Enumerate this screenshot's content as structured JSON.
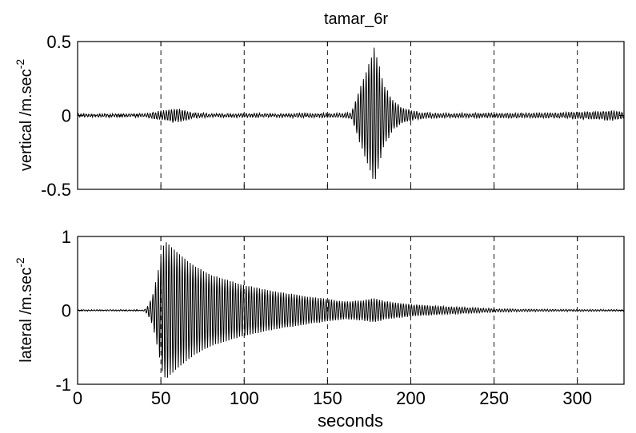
{
  "title": "tamar_6r",
  "xlabel": "seconds",
  "x_tick_labels": [
    "0",
    "50",
    "100",
    "150",
    "200",
    "250",
    "300"
  ],
  "chart_data": [
    {
      "type": "line",
      "title": "tamar_6r",
      "ylabel": "vertical /m.sec",
      "ylabel_exponent": "-2",
      "xlim": [
        0,
        328
      ],
      "ylim": [
        -0.5,
        0.5
      ],
      "yticks": [
        -0.5,
        0,
        0.5
      ],
      "ytick_labels": [
        "-0.5",
        "0",
        "0.5"
      ],
      "xticks": [
        0,
        50,
        100,
        150,
        200,
        250,
        300
      ],
      "grid": "x-dashed",
      "line_color": "#000000",
      "oscillation_period_s": 1.6,
      "noise_amplitude": 0.006,
      "envelope": [
        [
          0,
          0.008
        ],
        [
          40,
          0.008
        ],
        [
          45,
          0.02
        ],
        [
          52,
          0.03
        ],
        [
          58,
          0.045
        ],
        [
          63,
          0.035
        ],
        [
          70,
          0.015
        ],
        [
          80,
          0.01
        ],
        [
          110,
          0.01
        ],
        [
          140,
          0.01
        ],
        [
          160,
          0.012
        ],
        [
          164,
          0.015
        ],
        [
          166,
          0.07
        ],
        [
          168,
          0.14
        ],
        [
          172,
          0.26
        ],
        [
          176,
          0.38
        ],
        [
          178,
          0.46
        ],
        [
          180,
          0.38
        ],
        [
          184,
          0.2
        ],
        [
          190,
          0.09
        ],
        [
          197,
          0.04
        ],
        [
          205,
          0.02
        ],
        [
          220,
          0.012
        ],
        [
          250,
          0.012
        ],
        [
          290,
          0.015
        ],
        [
          300,
          0.02
        ],
        [
          312,
          0.025
        ],
        [
          320,
          0.03
        ],
        [
          328,
          0.02
        ]
      ]
    },
    {
      "type": "line",
      "ylabel": "lateral /m.sec",
      "ylabel_exponent": "-2",
      "xlabel": "seconds",
      "xlim": [
        0,
        328
      ],
      "ylim": [
        -1,
        1
      ],
      "yticks": [
        -1,
        0,
        1
      ],
      "ytick_labels": [
        "-1",
        "0",
        "1"
      ],
      "xticks": [
        0,
        50,
        100,
        150,
        200,
        250,
        300
      ],
      "xtick_labels": [
        "0",
        "50",
        "100",
        "150",
        "200",
        "250",
        "300"
      ],
      "grid": "x-dashed",
      "line_color": "#000000",
      "oscillation_period_s": 1.6,
      "noise_amplitude": 0.005,
      "envelope": [
        [
          0,
          0.005
        ],
        [
          40,
          0.006
        ],
        [
          42,
          0.05
        ],
        [
          45,
          0.2
        ],
        [
          48,
          0.5
        ],
        [
          51,
          0.85
        ],
        [
          53,
          0.93
        ],
        [
          60,
          0.78
        ],
        [
          70,
          0.6
        ],
        [
          80,
          0.48
        ],
        [
          100,
          0.34
        ],
        [
          120,
          0.25
        ],
        [
          140,
          0.18
        ],
        [
          160,
          0.12
        ],
        [
          170,
          0.13
        ],
        [
          178,
          0.16
        ],
        [
          185,
          0.12
        ],
        [
          200,
          0.08
        ],
        [
          220,
          0.05
        ],
        [
          250,
          0.02
        ],
        [
          280,
          0.012
        ],
        [
          328,
          0.008
        ]
      ]
    }
  ]
}
